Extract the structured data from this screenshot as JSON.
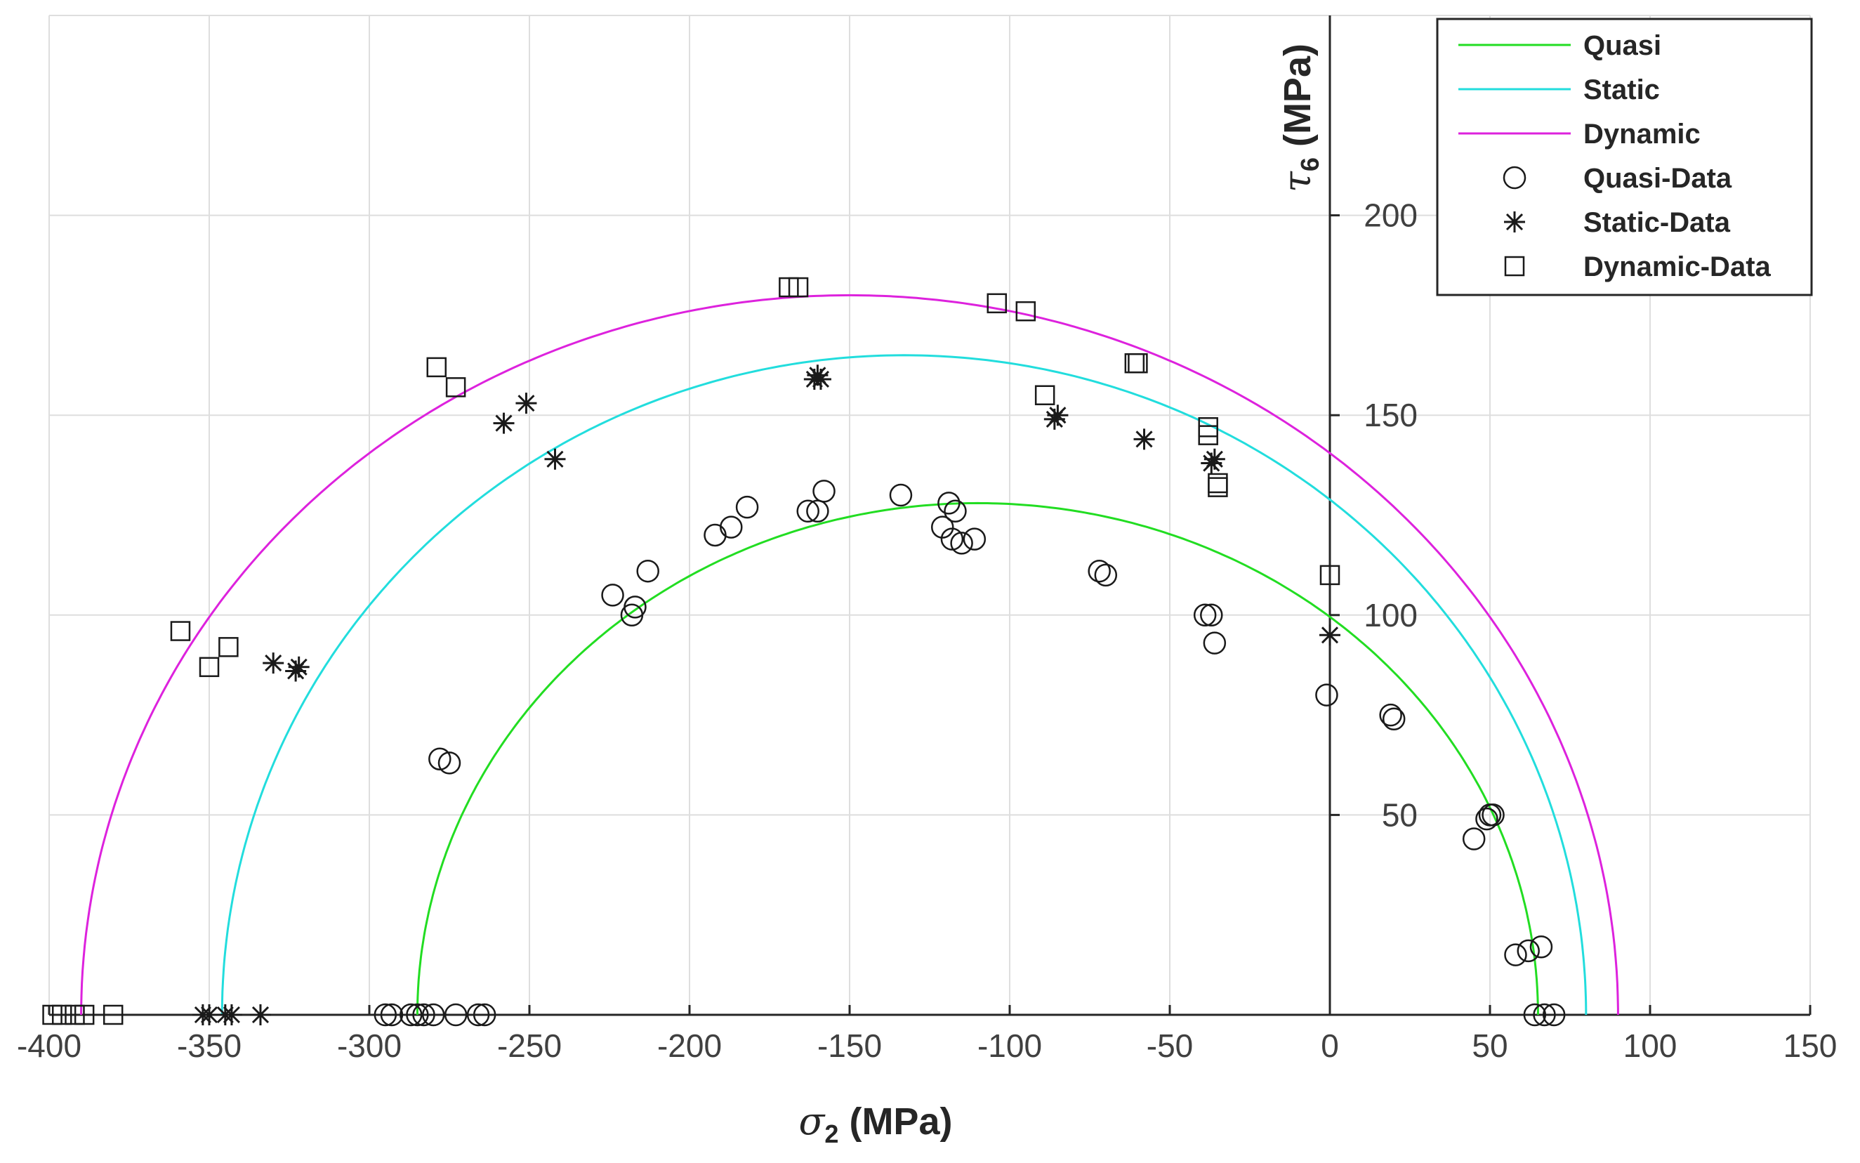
{
  "chart_data": {
    "type": "scatter",
    "title": "",
    "xlabel": {
      "symbol": "σ",
      "subscript": "2",
      "unit": " (MPa)"
    },
    "ylabel": {
      "symbol": "τ",
      "subscript": "6",
      "unit": " (MPa)"
    },
    "xlim": [
      -400,
      150
    ],
    "ylim": [
      0,
      250
    ],
    "xticks": [
      -400,
      -350,
      -300,
      -250,
      -200,
      -150,
      -100,
      -50,
      0,
      50,
      100,
      150
    ],
    "xtick_labels": [
      "-400",
      "-350",
      "-300",
      "-250",
      "-200",
      "-150",
      "-100",
      "-50",
      "0",
      "50",
      "100",
      "150"
    ],
    "yticks": [
      50,
      100,
      150,
      200
    ],
    "ytick_labels": [
      "50",
      "100",
      "150",
      "200"
    ],
    "grid": true,
    "y_axis_location": "x=0",
    "legend_position": "top-right",
    "curves": [
      {
        "name": "Quasi",
        "color": "#22dd22",
        "center": -110,
        "a": 175,
        "b": 128
      },
      {
        "name": "Static",
        "color": "#22dddd",
        "center": -133,
        "a": 213,
        "b": 165
      },
      {
        "name": "Dynamic",
        "color": "#dd22dd",
        "center": -150,
        "a": 240,
        "b": 180
      }
    ],
    "series": [
      {
        "name": "Quasi-Data",
        "marker": "circle",
        "points": [
          [
            -295,
            0
          ],
          [
            -293,
            0
          ],
          [
            -287,
            0
          ],
          [
            -285,
            0
          ],
          [
            -283,
            0
          ],
          [
            -280,
            0
          ],
          [
            -273,
            0
          ],
          [
            -266,
            0
          ],
          [
            -264,
            0
          ],
          [
            -278,
            64
          ],
          [
            -275,
            63
          ],
          [
            -224,
            105
          ],
          [
            -218,
            100
          ],
          [
            -217,
            102
          ],
          [
            -213,
            111
          ],
          [
            -192,
            120
          ],
          [
            -187,
            122
          ],
          [
            -182,
            127
          ],
          [
            -163,
            126
          ],
          [
            -160,
            126
          ],
          [
            -158,
            131
          ],
          [
            -134,
            130
          ],
          [
            -121,
            122
          ],
          [
            -119,
            128
          ],
          [
            -118,
            119
          ],
          [
            -117,
            126
          ],
          [
            -115,
            118
          ],
          [
            -111,
            119
          ],
          [
            -72,
            111
          ],
          [
            -70,
            110
          ],
          [
            -39,
            100
          ],
          [
            -37,
            100
          ],
          [
            -36,
            93
          ],
          [
            -1,
            80
          ],
          [
            19,
            75
          ],
          [
            20,
            74
          ],
          [
            45,
            44
          ],
          [
            49,
            49
          ],
          [
            50,
            50
          ],
          [
            51,
            50
          ],
          [
            58,
            15
          ],
          [
            62,
            16
          ],
          [
            66,
            17
          ],
          [
            64,
            0
          ],
          [
            67,
            0
          ],
          [
            70,
            0
          ]
        ]
      },
      {
        "name": "Static-Data",
        "marker": "asterisk",
        "points": [
          [
            -352,
            0
          ],
          [
            -350,
            0
          ],
          [
            -345,
            0
          ],
          [
            -343,
            0
          ],
          [
            -334,
            0
          ],
          [
            -330,
            88
          ],
          [
            -323,
            86
          ],
          [
            -322,
            87
          ],
          [
            -258,
            148
          ],
          [
            -251,
            153
          ],
          [
            -242,
            139
          ],
          [
            -161,
            159
          ],
          [
            -160,
            160
          ],
          [
            -159,
            159
          ],
          [
            -86,
            149
          ],
          [
            -85,
            150
          ],
          [
            -58,
            144
          ],
          [
            -37,
            138
          ],
          [
            -36,
            139
          ],
          [
            0,
            95
          ]
        ]
      },
      {
        "name": "Dynamic-Data",
        "marker": "square",
        "points": [
          [
            -399,
            0
          ],
          [
            -396,
            0
          ],
          [
            -392,
            0
          ],
          [
            -389,
            0
          ],
          [
            -380,
            0
          ],
          [
            -359,
            96
          ],
          [
            -350,
            87
          ],
          [
            -344,
            92
          ],
          [
            -279,
            162
          ],
          [
            -273,
            157
          ],
          [
            -169,
            182
          ],
          [
            -166,
            182
          ],
          [
            -104,
            178
          ],
          [
            -95,
            176
          ],
          [
            -89,
            155
          ],
          [
            -61,
            163
          ],
          [
            -60,
            163
          ],
          [
            -38,
            147
          ],
          [
            -38,
            145
          ],
          [
            -35,
            133
          ],
          [
            -35,
            132
          ],
          [
            0,
            110
          ]
        ]
      }
    ]
  }
}
